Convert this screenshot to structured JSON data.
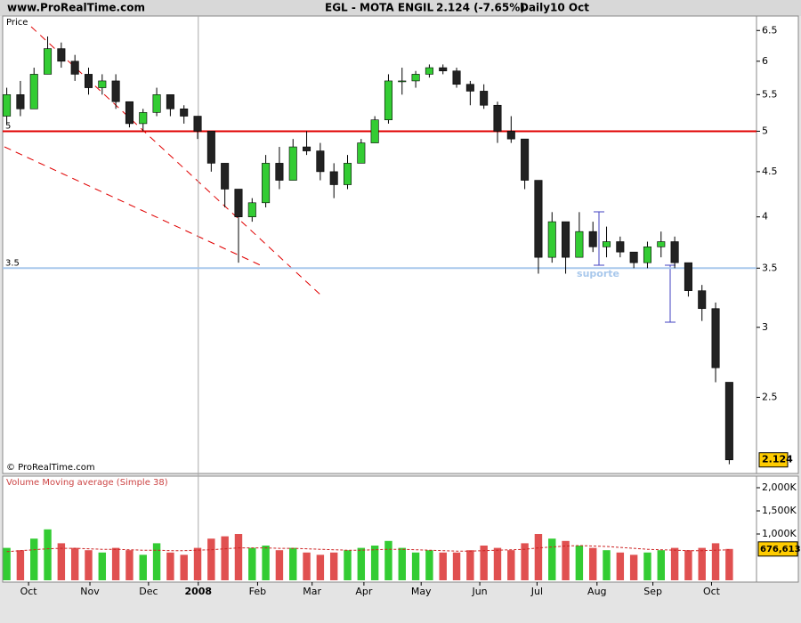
{
  "header": {
    "site": "www.ProRealTime.com",
    "instrument": "EGL - MOTA ENGIL",
    "quote": "2.124 (-7.65%)",
    "period": "Daily",
    "date": "10 Oct"
  },
  "chart_data": [
    {
      "type": "candlestick",
      "panel_label": "Price",
      "copyright": "© ProRealTime.com",
      "log_scale": true,
      "ylim": [
        2.05,
        6.75
      ],
      "yticks": [
        2.5,
        3,
        3.5,
        4,
        4.5,
        5,
        5.5,
        6,
        6.5
      ],
      "xlim": [
        -0.3,
        55
      ],
      "xticks": [
        {
          "value": 1.6,
          "label": "Oct"
        },
        {
          "value": 6.1,
          "label": "Nov"
        },
        {
          "value": 10.4,
          "label": "Dec"
        },
        {
          "value": 14.05,
          "label": "2008"
        },
        {
          "value": 18.4,
          "label": "Feb"
        },
        {
          "value": 22.4,
          "label": "Mar"
        },
        {
          "value": 26.2,
          "label": "Apr"
        },
        {
          "value": 30.4,
          "label": "May"
        },
        {
          "value": 34.7,
          "label": "Jun"
        },
        {
          "value": 38.9,
          "label": "Jul"
        },
        {
          "value": 43.3,
          "label": "Aug"
        },
        {
          "value": 47.4,
          "label": "Sep"
        },
        {
          "value": 51.7,
          "label": "Oct"
        }
      ],
      "year_separator": 14.05,
      "candles": {
        "open": [
          5.2,
          5.5,
          5.3,
          5.8,
          6.2,
          6.0,
          5.8,
          5.6,
          5.7,
          5.4,
          5.1,
          5.25,
          5.5,
          5.3,
          5.2,
          5.0,
          4.6,
          4.3,
          4.0,
          4.15,
          4.6,
          4.4,
          4.8,
          4.75,
          4.5,
          4.35,
          4.6,
          4.85,
          5.15,
          5.7,
          5.7,
          5.8,
          5.9,
          5.85,
          5.65,
          5.55,
          5.35,
          5.0,
          4.9,
          4.4,
          3.6,
          3.95,
          3.6,
          3.85,
          3.7,
          3.75,
          3.65,
          3.55,
          3.7,
          3.75,
          3.55,
          3.3,
          3.15,
          2.6
        ],
        "high": [
          5.6,
          5.7,
          5.9,
          6.4,
          6.3,
          6.1,
          5.9,
          5.8,
          5.8,
          5.4,
          5.3,
          5.6,
          5.5,
          5.35,
          5.2,
          5.0,
          4.6,
          4.3,
          4.2,
          4.7,
          4.8,
          4.9,
          5.0,
          4.85,
          4.6,
          4.7,
          4.9,
          5.2,
          5.8,
          5.9,
          5.85,
          5.95,
          5.95,
          5.9,
          5.7,
          5.65,
          5.4,
          5.2,
          4.9,
          4.4,
          4.05,
          3.95,
          4.05,
          3.95,
          3.9,
          3.8,
          3.65,
          3.75,
          3.85,
          3.8,
          3.55,
          3.35,
          3.2,
          2.6
        ],
        "low": [
          5.1,
          5.2,
          5.3,
          5.8,
          5.9,
          5.7,
          5.5,
          5.5,
          5.3,
          5.05,
          5.0,
          5.2,
          5.2,
          5.1,
          4.9,
          4.5,
          4.1,
          3.55,
          3.95,
          4.1,
          4.3,
          4.4,
          4.7,
          4.4,
          4.2,
          4.3,
          4.6,
          4.85,
          5.1,
          5.5,
          5.6,
          5.75,
          5.8,
          5.6,
          5.35,
          5.3,
          4.85,
          4.85,
          4.3,
          3.45,
          3.55,
          3.45,
          3.6,
          3.65,
          3.6,
          3.6,
          3.5,
          3.5,
          3.6,
          3.5,
          3.25,
          3.05,
          2.6,
          2.1
        ],
        "close": [
          5.5,
          5.3,
          5.8,
          6.2,
          6.0,
          5.8,
          5.6,
          5.7,
          5.4,
          5.1,
          5.25,
          5.5,
          5.3,
          5.2,
          5.0,
          4.6,
          4.3,
          4.0,
          4.15,
          4.6,
          4.4,
          4.8,
          4.75,
          4.5,
          4.35,
          4.6,
          4.85,
          5.15,
          5.7,
          5.7,
          5.8,
          5.9,
          5.85,
          5.65,
          5.55,
          5.35,
          5.0,
          4.9,
          4.4,
          3.6,
          3.95,
          3.6,
          3.85,
          3.7,
          3.75,
          3.65,
          3.55,
          3.7,
          3.75,
          3.55,
          3.3,
          3.15,
          2.7,
          2.124
        ]
      },
      "colors": {
        "up": "#33cc33",
        "down": "#222222"
      },
      "levels": [
        {
          "value": 5,
          "color": "#e00000"
        },
        {
          "value": 3.5,
          "color": "#a8c8ec"
        }
      ],
      "annotation": "suporte",
      "last_price": 2.124
    },
    {
      "type": "bar",
      "panel_label": "Volume Moving average (Simple 38)",
      "ylim": [
        0,
        2250
      ],
      "yticks": [
        {
          "value": 2000,
          "label": "2,000K"
        },
        {
          "value": 1500,
          "label": "1,500K"
        },
        {
          "value": 1000,
          "label": "1,000K"
        }
      ],
      "values": [
        700,
        650,
        900,
        1100,
        800,
        700,
        650,
        600,
        700,
        650,
        550,
        800,
        600,
        550,
        700,
        900,
        950,
        1000,
        700,
        750,
        650,
        700,
        600,
        550,
        600,
        650,
        700,
        750,
        850,
        700,
        600,
        650,
        600,
        600,
        650,
        750,
        700,
        650,
        800,
        1000,
        900,
        850,
        750,
        700,
        650,
        600,
        550,
        600,
        650,
        700,
        650,
        700,
        800,
        676.613
      ],
      "moving_average": [
        620,
        640,
        660,
        680,
        690,
        690,
        680,
        670,
        670,
        660,
        650,
        650,
        640,
        640,
        650,
        660,
        680,
        700,
        700,
        700,
        690,
        690,
        680,
        670,
        660,
        650,
        650,
        660,
        670,
        670,
        660,
        650,
        640,
        630,
        630,
        640,
        650,
        660,
        670,
        700,
        720,
        740,
        750,
        740,
        730,
        710,
        690,
        670,
        660,
        650,
        640,
        640,
        650,
        660
      ],
      "colors": {
        "up": "#33cc33",
        "down": "#e05050",
        "ma": "#cc2222"
      },
      "last_volume": {
        "value": 676.613,
        "label": "676,613"
      }
    }
  ]
}
